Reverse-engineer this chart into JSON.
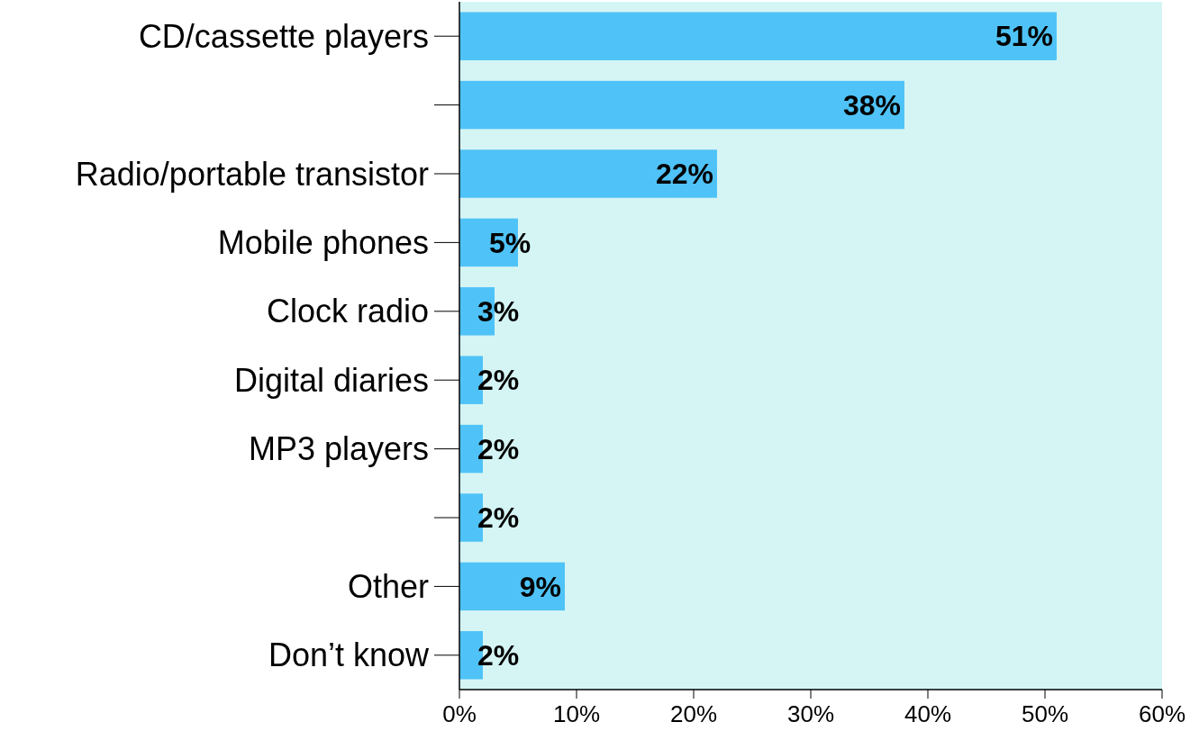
{
  "chart_data": {
    "type": "bar",
    "orientation": "horizontal",
    "categories": [
      "CD/cassette players",
      null,
      "Radio/portable transistor",
      "Mobile phones",
      "Clock radio",
      "Digital diaries",
      "MP3 players",
      null,
      "Other",
      "Don’t know"
    ],
    "values": [
      51,
      38,
      22,
      5,
      3,
      2,
      2,
      2,
      9,
      2
    ],
    "color": "#4fc3f7",
    "value_labels": [
      "51%",
      "38%",
      "22%",
      "5%",
      "3%",
      "2%",
      "2%",
      "2%",
      "9%",
      "2%"
    ],
    "xlim": [
      0,
      60
    ],
    "xticks": [
      {
        "value": 0,
        "label": "0%"
      },
      {
        "value": 10,
        "label": "10%"
      },
      {
        "value": 20,
        "label": "20%"
      },
      {
        "value": 30,
        "label": "30%"
      },
      {
        "value": 40,
        "label": "40%"
      },
      {
        "value": 50,
        "label": "50%"
      },
      {
        "value": 60,
        "label": "60%"
      }
    ],
    "grid": false
  }
}
